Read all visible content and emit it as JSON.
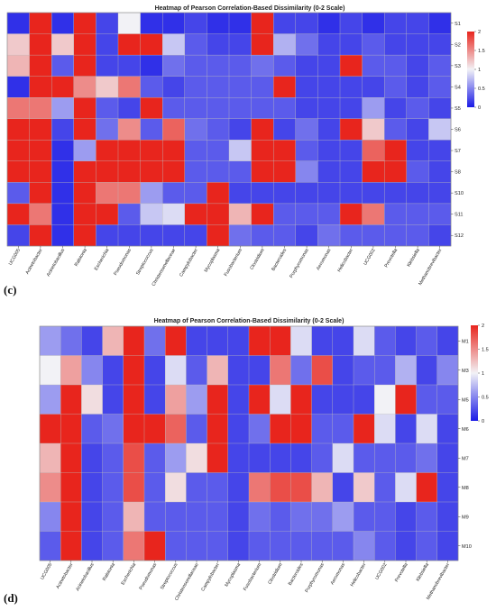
{
  "chart_data": [
    {
      "type": "heatmap",
      "panel_label": "(c)",
      "title": "Heatmap of Pearson Correlation-Based Dissimilarity (0-2 Scale)",
      "x_labels": [
        "UCG005",
        "Acinetobacter",
        "Acinetobacillus",
        "Ralstonia",
        "Escherichia",
        "Pseudomonas",
        "Streptococcus",
        "Christensenellaceae",
        "Campylobacter",
        "Mycoplasma",
        "Fusobacterium",
        "Clostridium",
        "Bacteroides",
        "Porphyromonas",
        "Aeromonas",
        "Helicobacter",
        "UCG002",
        "Prevotella",
        "Klebsiella",
        "Methanobrevibacter"
      ],
      "y_labels": [
        "S1",
        "S2",
        "S3",
        "S4",
        "S5",
        "S6",
        "S7",
        "S8",
        "S10",
        "S11",
        "S12"
      ],
      "values": [
        [
          0.1,
          2.0,
          0.1,
          2.0,
          0.2,
          1.0,
          0.1,
          0.1,
          0.2,
          0.1,
          0.1,
          2.0,
          0.2,
          0.2,
          0.1,
          0.2,
          0.1,
          0.2,
          0.2,
          0.1
        ],
        [
          1.2,
          2.0,
          1.2,
          2.0,
          0.2,
          2.0,
          2.0,
          0.8,
          0.3,
          0.2,
          0.2,
          2.0,
          0.7,
          0.4,
          0.2,
          0.2,
          0.3,
          0.2,
          0.2,
          0.2
        ],
        [
          1.3,
          2.0,
          0.3,
          2.0,
          0.2,
          0.2,
          0.1,
          0.4,
          0.3,
          0.3,
          0.3,
          0.4,
          0.3,
          0.2,
          0.2,
          2.0,
          0.3,
          0.3,
          0.2,
          0.3
        ],
        [
          0.1,
          2.0,
          2.0,
          1.5,
          1.2,
          1.6,
          0.3,
          0.2,
          0.3,
          0.3,
          0.3,
          0.3,
          2.0,
          0.2,
          0.2,
          0.2,
          0.2,
          0.3,
          0.2,
          0.3
        ],
        [
          1.6,
          1.6,
          0.6,
          2.0,
          0.3,
          0.2,
          2.0,
          0.3,
          0.3,
          0.3,
          0.3,
          0.3,
          0.3,
          0.2,
          0.2,
          0.2,
          0.6,
          0.2,
          0.3,
          0.2
        ],
        [
          2.0,
          2.0,
          0.2,
          2.0,
          0.4,
          1.5,
          0.3,
          1.7,
          0.4,
          0.3,
          0.2,
          2.0,
          0.2,
          0.4,
          0.2,
          2.0,
          1.2,
          0.3,
          0.2,
          0.8
        ],
        [
          2.0,
          2.0,
          0.1,
          0.6,
          2.0,
          2.0,
          2.0,
          2.0,
          0.3,
          0.3,
          0.8,
          2.0,
          2.0,
          0.3,
          0.2,
          0.2,
          1.7,
          2.0,
          0.2,
          0.2
        ],
        [
          2.0,
          2.0,
          0.1,
          2.0,
          2.0,
          2.0,
          2.0,
          2.0,
          0.3,
          0.3,
          0.3,
          2.0,
          2.0,
          0.5,
          0.2,
          0.2,
          2.0,
          2.0,
          0.3,
          0.2
        ],
        [
          0.3,
          2.0,
          0.1,
          2.0,
          1.6,
          1.6,
          0.6,
          0.3,
          0.3,
          2.0,
          0.2,
          0.2,
          0.2,
          0.2,
          0.2,
          0.2,
          0.2,
          0.2,
          0.2,
          0.2
        ],
        [
          2.0,
          1.6,
          0.1,
          2.0,
          2.0,
          0.3,
          0.8,
          0.9,
          2.0,
          2.0,
          1.3,
          2.0,
          0.3,
          0.3,
          0.3,
          2.0,
          1.6,
          0.3,
          0.3,
          0.3
        ],
        [
          0.2,
          2.0,
          0.1,
          2.0,
          0.2,
          0.2,
          0.2,
          0.2,
          0.2,
          2.0,
          0.4,
          0.3,
          0.3,
          0.2,
          0.4,
          0.3,
          0.3,
          0.3,
          0.3,
          0.2
        ]
      ],
      "vmin": 0,
      "vmax": 2,
      "colorbar_ticks": [
        "2",
        "1.5",
        "1",
        "0.5",
        "0"
      ]
    },
    {
      "type": "heatmap",
      "panel_label": "(d)",
      "title": "Heatmap of Pearson Correlation-Based Dissimilarity (0-2 Scale)",
      "x_labels": [
        "UCG005",
        "Acinetobacter",
        "Acinetobacillus",
        "Ralstonia",
        "Escherichia",
        "Pseudomonas",
        "Streptococcus",
        "Christensenellaceae",
        "Campylobacter",
        "Mycoplasma",
        "Fusobacterium",
        "Clostridium",
        "Bacteroides",
        "Porphyromonas",
        "Aeromonas",
        "Helicobacter",
        "UCG002",
        "Prevotella",
        "Klebsiella",
        "Methanobrevibacter"
      ],
      "y_labels": [
        "M1",
        "M3",
        "M5",
        "M6",
        "M7",
        "M8",
        "M9",
        "M10"
      ],
      "values": [
        [
          0.6,
          0.4,
          0.2,
          1.3,
          2.0,
          0.4,
          2.0,
          0.2,
          0.2,
          0.2,
          2.0,
          2.0,
          0.9,
          0.2,
          0.2,
          0.9,
          0.3,
          0.2,
          0.3,
          0.2
        ],
        [
          1.0,
          1.4,
          0.5,
          0.2,
          2.0,
          0.2,
          0.9,
          0.3,
          1.3,
          0.2,
          0.2,
          1.6,
          0.4,
          1.8,
          0.2,
          0.3,
          0.3,
          0.7,
          0.2,
          0.5
        ],
        [
          0.6,
          2.0,
          1.1,
          0.2,
          2.0,
          0.2,
          1.4,
          0.6,
          2.0,
          0.2,
          2.0,
          0.9,
          2.0,
          0.2,
          0.2,
          0.2,
          1.0,
          2.0,
          0.3,
          0.3
        ],
        [
          2.0,
          2.0,
          0.3,
          0.4,
          2.0,
          2.0,
          1.7,
          0.3,
          2.0,
          0.2,
          0.4,
          2.0,
          2.0,
          0.3,
          0.3,
          2.0,
          0.9,
          0.2,
          0.9,
          0.2
        ],
        [
          1.3,
          2.0,
          0.2,
          0.3,
          1.8,
          0.3,
          0.6,
          1.1,
          2.0,
          0.2,
          0.2,
          0.2,
          0.2,
          0.3,
          0.9,
          0.3,
          0.3,
          0.3,
          0.4,
          0.2
        ],
        [
          1.5,
          2.0,
          0.2,
          0.3,
          1.8,
          0.3,
          1.1,
          0.3,
          0.3,
          0.2,
          1.6,
          1.8,
          1.8,
          1.3,
          0.2,
          1.2,
          0.3,
          0.9,
          2.0,
          0.2
        ],
        [
          0.5,
          2.0,
          0.2,
          0.3,
          1.3,
          0.3,
          0.3,
          0.3,
          0.3,
          0.2,
          0.4,
          0.3,
          0.4,
          0.4,
          0.6,
          0.3,
          0.3,
          0.2,
          0.3,
          0.2
        ],
        [
          0.3,
          2.0,
          0.2,
          0.3,
          1.6,
          2.0,
          0.3,
          0.3,
          0.3,
          0.2,
          0.3,
          0.3,
          0.3,
          0.3,
          0.3,
          0.5,
          0.3,
          0.2,
          0.3,
          0.2
        ]
      ],
      "vmin": 0,
      "vmax": 2,
      "colorbar_ticks": [
        "2",
        "1.5",
        "1",
        "0.5",
        "0"
      ]
    }
  ],
  "colors": {
    "low": "#1a1ae6",
    "mid": "#f2f2f6",
    "high": "#e8251d"
  }
}
